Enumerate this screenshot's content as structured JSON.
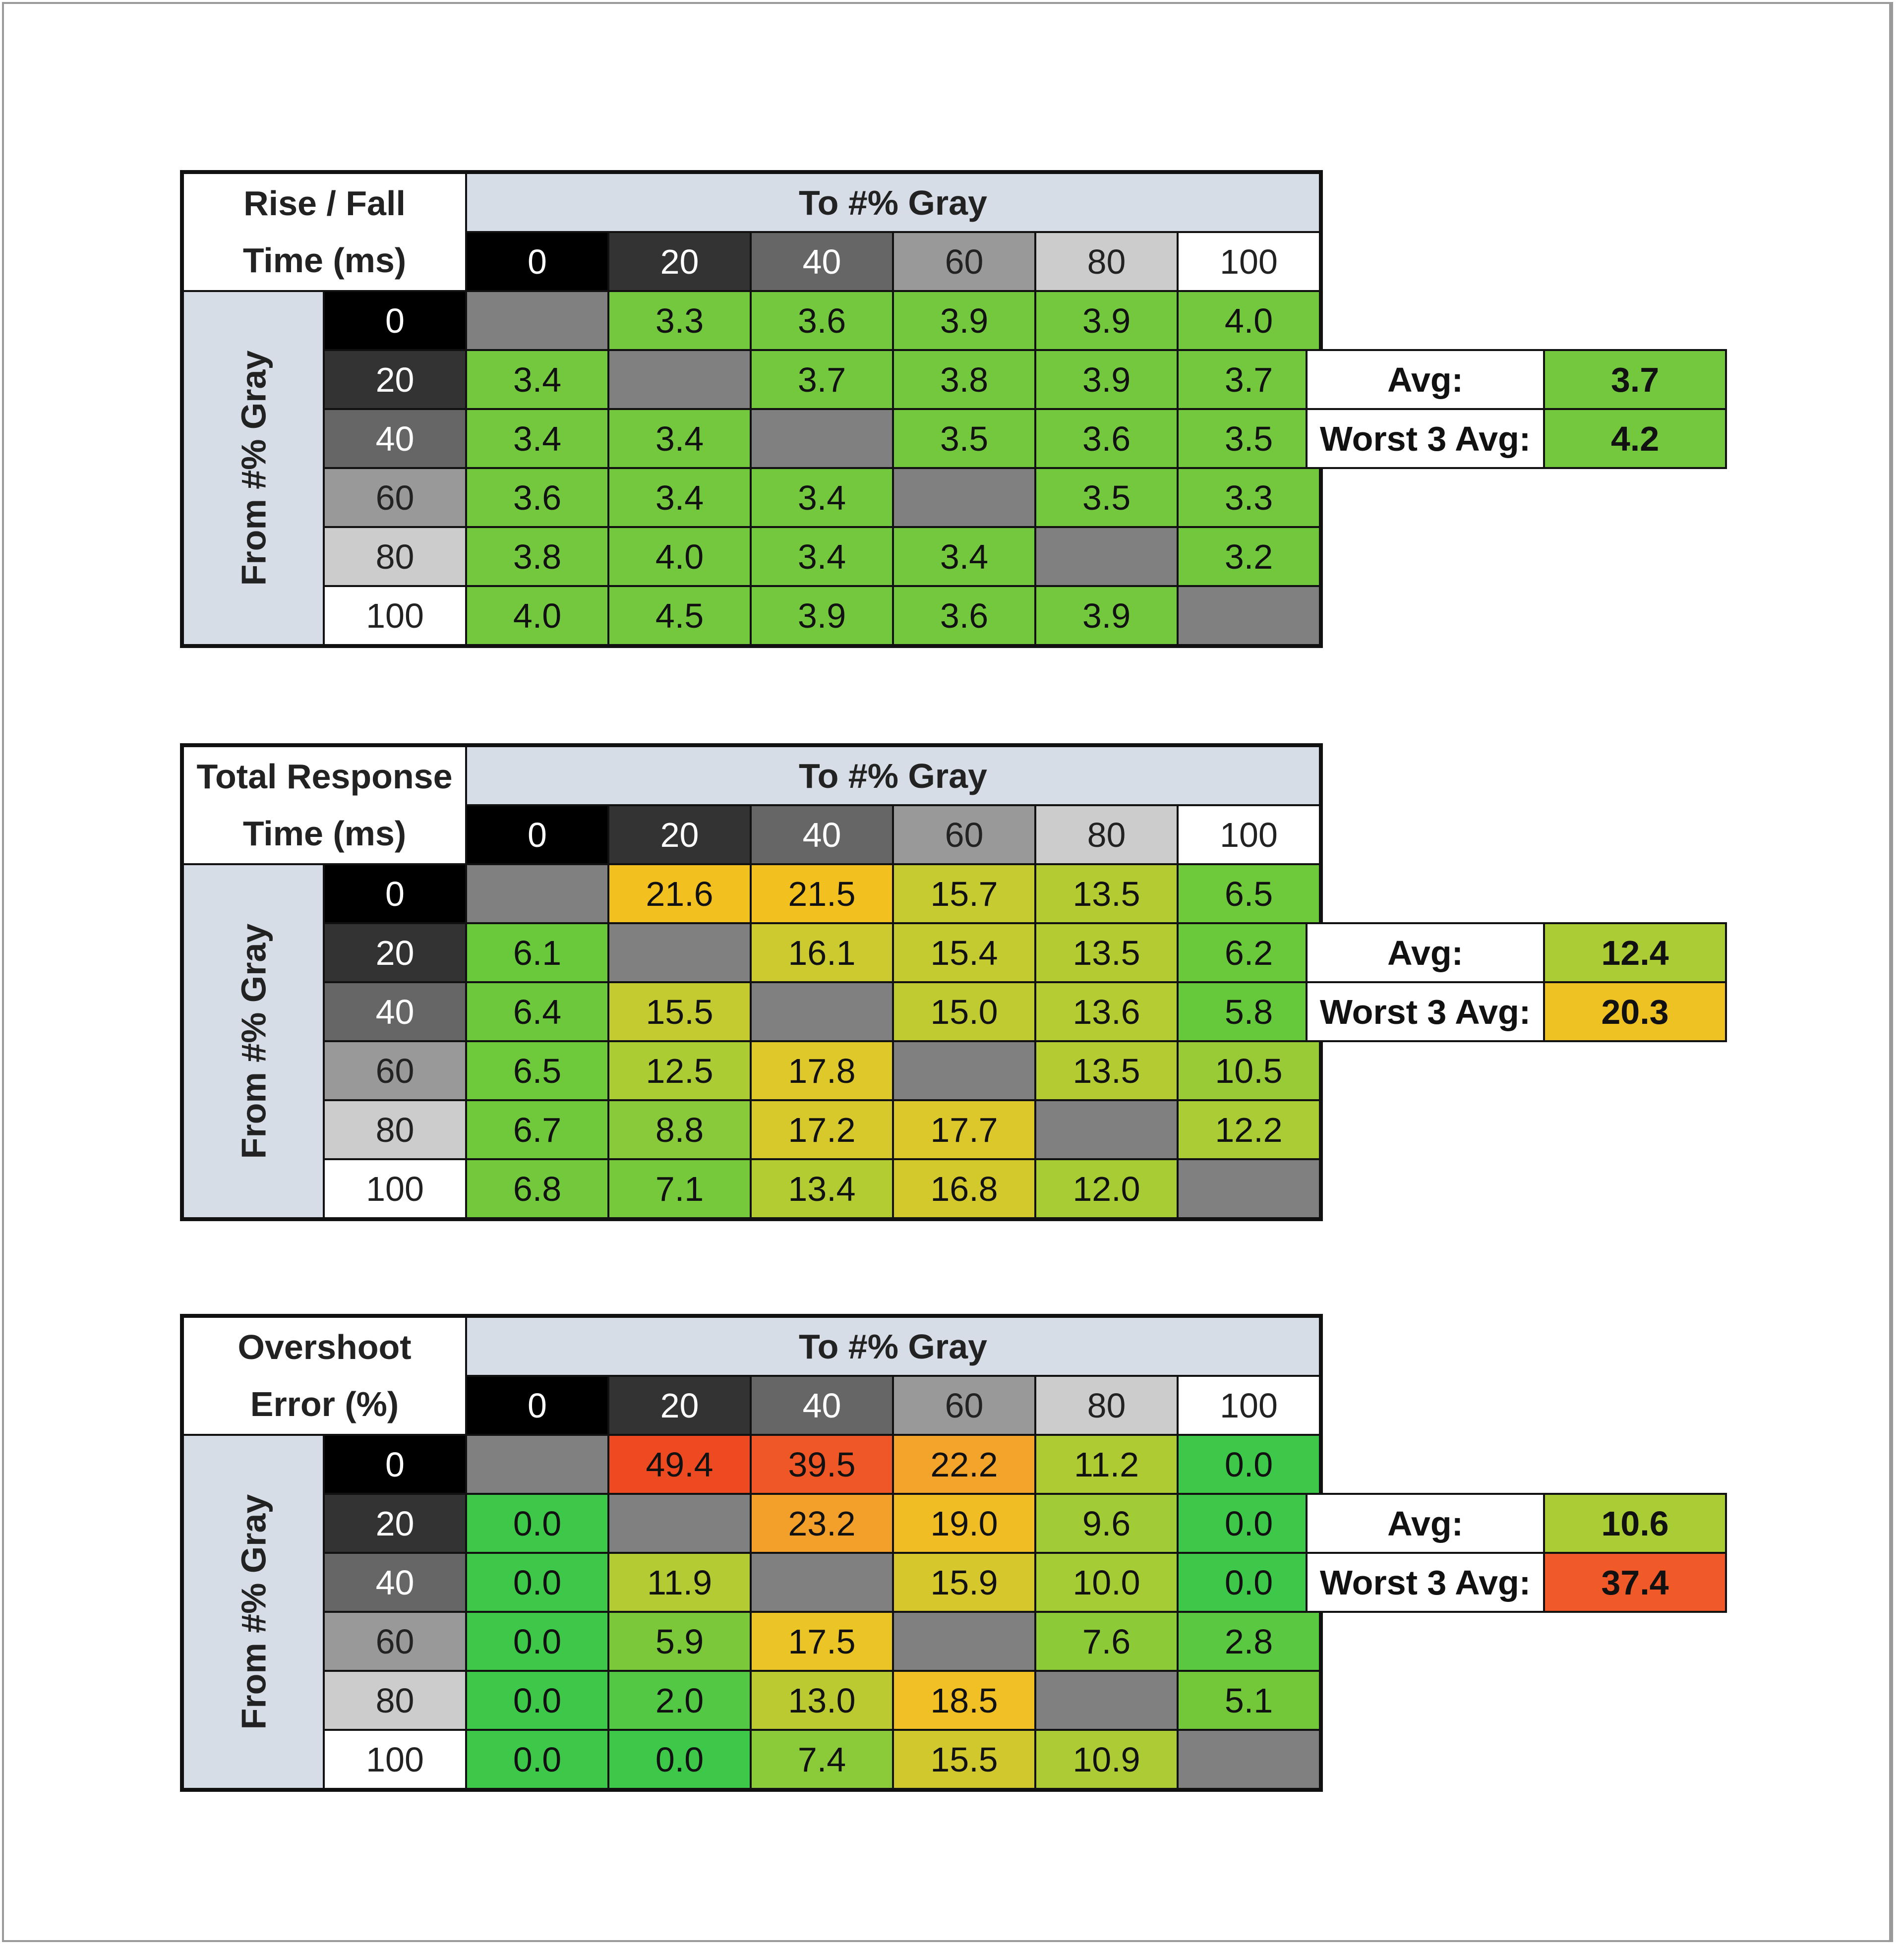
{
  "chart_data": [
    {
      "type": "heatmap",
      "title_lines": [
        "Rise / Fall",
        "Time (ms)"
      ],
      "column_header": "To #% Gray",
      "row_header": "From #% Gray",
      "columns": [
        "0",
        "20",
        "40",
        "60",
        "80",
        "100"
      ],
      "rows": [
        "0",
        "20",
        "40",
        "60",
        "80",
        "100"
      ],
      "values": [
        [
          null,
          3.3,
          3.6,
          3.9,
          3.9,
          4.0
        ],
        [
          3.4,
          null,
          3.7,
          3.8,
          3.9,
          3.7
        ],
        [
          3.4,
          3.4,
          null,
          3.5,
          3.6,
          3.5
        ],
        [
          3.6,
          3.4,
          3.4,
          null,
          3.5,
          3.3
        ],
        [
          3.8,
          4.0,
          3.4,
          3.4,
          null,
          3.2
        ],
        [
          4.0,
          4.5,
          3.9,
          3.6,
          3.9,
          null
        ]
      ],
      "avg_label": "Avg:",
      "avg": "3.7",
      "worst_label": "Worst 3 Avg:",
      "worst": "4.2",
      "color_stops": [
        [
          0,
          "#6ec83c"
        ],
        [
          10,
          "#7cc940"
        ]
      ]
    },
    {
      "type": "heatmap",
      "title_lines": [
        "Total Response",
        "Time (ms)"
      ],
      "column_header": "To #% Gray",
      "row_header": "From #% Gray",
      "columns": [
        "0",
        "20",
        "40",
        "60",
        "80",
        "100"
      ],
      "rows": [
        "0",
        "20",
        "40",
        "60",
        "80",
        "100"
      ],
      "values": [
        [
          null,
          21.6,
          21.5,
          15.7,
          13.5,
          6.5
        ],
        [
          6.1,
          null,
          16.1,
          15.4,
          13.5,
          6.2
        ],
        [
          6.4,
          15.5,
          null,
          15.0,
          13.6,
          5.8
        ],
        [
          6.5,
          12.5,
          17.8,
          null,
          13.5,
          10.5
        ],
        [
          6.7,
          8.8,
          17.2,
          17.7,
          null,
          12.2
        ],
        [
          6.8,
          7.1,
          13.4,
          16.8,
          12.0,
          null
        ]
      ],
      "avg_label": "Avg:",
      "avg": "12.4",
      "worst_label": "Worst 3 Avg:",
      "worst": "20.3",
      "color_stops": [
        [
          5,
          "#5cc83c"
        ],
        [
          8,
          "#80ca3a"
        ],
        [
          12,
          "#a8cc34"
        ],
        [
          15.5,
          "#c4cb30"
        ],
        [
          18,
          "#e0c82a"
        ],
        [
          21,
          "#f2c01f"
        ]
      ]
    },
    {
      "type": "heatmap",
      "title_lines": [
        "Overshoot",
        "Error (%)"
      ],
      "column_header": "To #% Gray",
      "row_header": "From #% Gray",
      "columns": [
        "0",
        "20",
        "40",
        "60",
        "80",
        "100"
      ],
      "rows": [
        "0",
        "20",
        "40",
        "60",
        "80",
        "100"
      ],
      "values": [
        [
          null,
          49.4,
          39.5,
          22.2,
          11.2,
          0.0
        ],
        [
          0.0,
          null,
          23.2,
          19.0,
          9.6,
          0.0
        ],
        [
          0.0,
          11.9,
          null,
          15.9,
          10.0,
          0.0
        ],
        [
          0.0,
          5.9,
          17.5,
          null,
          7.6,
          2.8
        ],
        [
          0.0,
          2.0,
          13.0,
          18.5,
          null,
          5.1
        ],
        [
          0.0,
          0.0,
          7.4,
          15.5,
          10.9,
          null
        ]
      ],
      "avg_label": "Avg:",
      "avg": "10.6",
      "worst_label": "Worst 3 Avg:",
      "worst": "37.4",
      "color_stops": [
        [
          0,
          "#3ec84a"
        ],
        [
          5,
          "#72c83a"
        ],
        [
          10,
          "#a6cc35"
        ],
        [
          15,
          "#cbc930"
        ],
        [
          18,
          "#f0c423"
        ],
        [
          22,
          "#f2a62a"
        ],
        [
          37,
          "#f05a28"
        ],
        [
          49,
          "#ee4a22"
        ]
      ]
    }
  ],
  "colors": {
    "diagonal": "#808080",
    "header_bg": "#d6dde6",
    "gray_levels": [
      "#000000",
      "#333333",
      "#666666",
      "#999999",
      "#cccccc",
      "#ffffff"
    ],
    "gray_text": [
      "#ffffff",
      "#ffffff",
      "#ffffff",
      "#222222",
      "#222222",
      "#222222"
    ]
  }
}
